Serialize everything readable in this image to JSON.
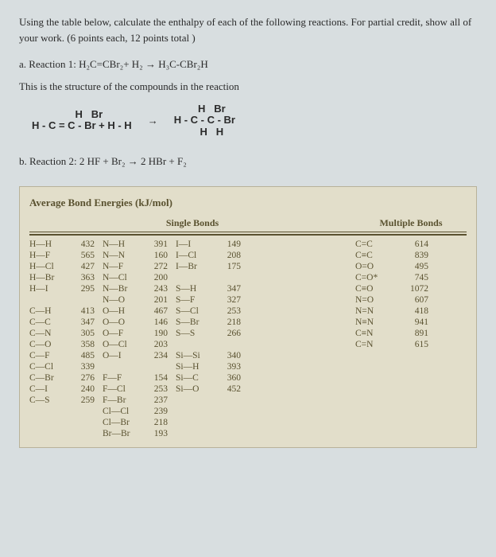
{
  "question": "Using the table below, calculate the enthalpy of each of the following reactions. For partial credit, show all of your work. (6 points each, 12 points total )",
  "partA": "a. Reaction 1: H₂C=CBr₂+ H₂ → H₃C-CBr₂H",
  "structureCaption": "This is the structure of the compounds in the reaction",
  "struct1_top": "H   Br",
  "struct1_mid": "H - C = C - Br + H - H",
  "arrow": "→",
  "struct2_top": "H   Br",
  "struct2_mid": "H - C - C - Br",
  "struct2_bot": "H   H",
  "partB": "b. Reaction 2: 2 HF + Br₂ → 2 HBr + F₂",
  "tableTitle": "Average Bond Energies (kJ/mol)",
  "singleHeader": "Single Bonds",
  "multiHeader": "Multiple Bonds",
  "col1": [
    {
      "b": "H—H",
      "v": "432"
    },
    {
      "b": "H—F",
      "v": "565"
    },
    {
      "b": "H—Cl",
      "v": "427"
    },
    {
      "b": "H—Br",
      "v": "363"
    },
    {
      "b": "H—I",
      "v": "295"
    },
    {
      "b": "",
      "v": ""
    },
    {
      "b": "C—H",
      "v": "413"
    },
    {
      "b": "C—C",
      "v": "347"
    },
    {
      "b": "C—N",
      "v": "305"
    },
    {
      "b": "C—O",
      "v": "358"
    },
    {
      "b": "C—F",
      "v": "485"
    },
    {
      "b": "C—Cl",
      "v": "339"
    },
    {
      "b": "C—Br",
      "v": "276"
    },
    {
      "b": "C—I",
      "v": "240"
    },
    {
      "b": "C—S",
      "v": "259"
    }
  ],
  "col2": [
    {
      "b": "N—H",
      "v": "391"
    },
    {
      "b": "N—N",
      "v": "160"
    },
    {
      "b": "N—F",
      "v": "272"
    },
    {
      "b": "N—Cl",
      "v": "200"
    },
    {
      "b": "N—Br",
      "v": "243"
    },
    {
      "b": "N—O",
      "v": "201"
    },
    {
      "b": "O—H",
      "v": "467"
    },
    {
      "b": "O—O",
      "v": "146"
    },
    {
      "b": "O—F",
      "v": "190"
    },
    {
      "b": "O—Cl",
      "v": "203"
    },
    {
      "b": "O—I",
      "v": "234"
    },
    {
      "b": "",
      "v": ""
    },
    {
      "b": "F—F",
      "v": "154"
    },
    {
      "b": "F—Cl",
      "v": "253"
    },
    {
      "b": "F—Br",
      "v": "237"
    },
    {
      "b": "Cl—Cl",
      "v": "239"
    },
    {
      "b": "Cl—Br",
      "v": "218"
    },
    {
      "b": "Br—Br",
      "v": "193"
    }
  ],
  "col3": [
    {
      "b": "I—I",
      "v": "149"
    },
    {
      "b": "I—Cl",
      "v": "208"
    },
    {
      "b": "I—Br",
      "v": "175"
    },
    {
      "b": "",
      "v": ""
    },
    {
      "b": "S—H",
      "v": "347"
    },
    {
      "b": "S—F",
      "v": "327"
    },
    {
      "b": "S—Cl",
      "v": "253"
    },
    {
      "b": "S—Br",
      "v": "218"
    },
    {
      "b": "S—S",
      "v": "266"
    },
    {
      "b": "",
      "v": ""
    },
    {
      "b": "Si—Si",
      "v": "340"
    },
    {
      "b": "Si—H",
      "v": "393"
    },
    {
      "b": "Si—C",
      "v": "360"
    },
    {
      "b": "Si—O",
      "v": "452"
    }
  ],
  "multi": [
    {
      "b": "C=C",
      "v": "614"
    },
    {
      "b": "C≡C",
      "v": "839"
    },
    {
      "b": "O=O",
      "v": "495"
    },
    {
      "b": "C=O*",
      "v": "745"
    },
    {
      "b": "C≡O",
      "v": "1072"
    },
    {
      "b": "N=O",
      "v": "607"
    },
    {
      "b": "N=N",
      "v": "418"
    },
    {
      "b": "N≡N",
      "v": "941"
    },
    {
      "b": "C≡N",
      "v": "891"
    },
    {
      "b": "C=N",
      "v": "615"
    }
  ]
}
